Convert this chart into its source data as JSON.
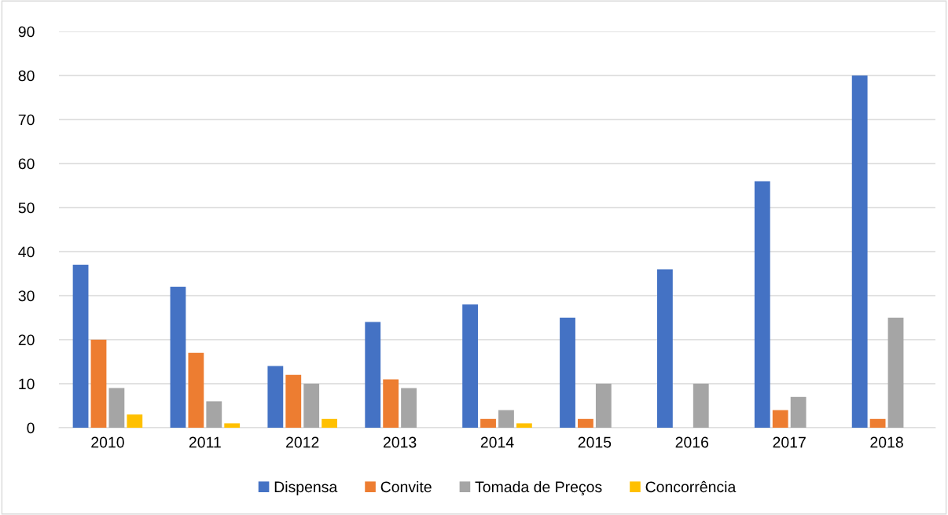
{
  "chart_data": {
    "type": "bar",
    "categories": [
      "2010",
      "2011",
      "2012",
      "2013",
      "2014",
      "2015",
      "2016",
      "2017",
      "2018"
    ],
    "series": [
      {
        "name": "Dispensa",
        "color": "#4472c4",
        "values": [
          37,
          32,
          14,
          24,
          28,
          25,
          36,
          56,
          80
        ]
      },
      {
        "name": "Convite",
        "color": "#ed7d31",
        "values": [
          20,
          17,
          12,
          11,
          2,
          2,
          0,
          4,
          2
        ]
      },
      {
        "name": "Tomada de Preços",
        "color": "#a5a5a5",
        "values": [
          9,
          6,
          10,
          9,
          4,
          10,
          10,
          7,
          25
        ]
      },
      {
        "name": "Concorrência",
        "color": "#ffc000",
        "values": [
          3,
          1,
          2,
          0,
          1,
          0,
          0,
          0,
          0
        ]
      }
    ],
    "ylim": [
      0,
      90
    ],
    "yticks": [
      0,
      10,
      20,
      30,
      40,
      50,
      60,
      70,
      80,
      90
    ],
    "grid": "y",
    "legend": "bottom"
  }
}
